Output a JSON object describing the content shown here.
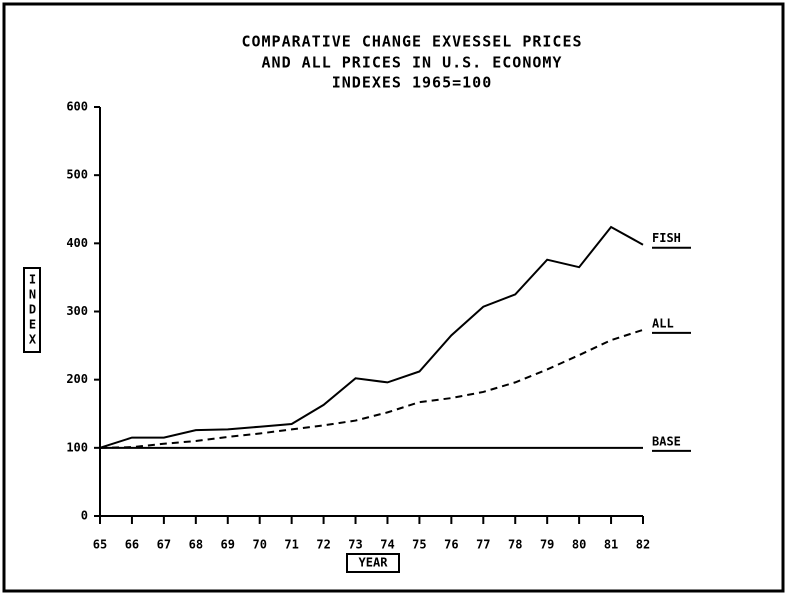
{
  "chart_data": {
    "type": "line",
    "title": [
      "COMPARATIVE CHANGE EXVESSEL PRICES",
      "AND ALL PRICES IN U.S. ECONOMY",
      "INDEXES 1965=100"
    ],
    "xlabel": "YEAR",
    "ylabel": "INDEX",
    "categories": [
      "65",
      "66",
      "67",
      "68",
      "69",
      "70",
      "71",
      "72",
      "73",
      "74",
      "75",
      "76",
      "77",
      "78",
      "79",
      "80",
      "81",
      "82"
    ],
    "series": [
      {
        "name": "FISH",
        "color": "#000000",
        "style": "solid",
        "values": [
          100,
          115,
          115,
          126,
          127,
          131,
          135,
          163,
          202,
          196,
          212,
          265,
          307,
          325,
          376,
          365,
          424,
          398
        ]
      },
      {
        "name": "ALL",
        "color": "#000000",
        "style": "dashed",
        "values": [
          100,
          101,
          106,
          110,
          116,
          121,
          127,
          133,
          140,
          152,
          167,
          173,
          182,
          196,
          215,
          236,
          258,
          273
        ]
      },
      {
        "name": "BASE",
        "color": "#000000",
        "style": "solid",
        "values": [
          100,
          100,
          100,
          100,
          100,
          100,
          100,
          100,
          100,
          100,
          100,
          100,
          100,
          100,
          100,
          100,
          100,
          100
        ]
      }
    ],
    "ylim": [
      0,
      600
    ],
    "yticks": [
      0,
      100,
      200,
      300,
      400,
      500,
      600
    ],
    "grid": false
  }
}
